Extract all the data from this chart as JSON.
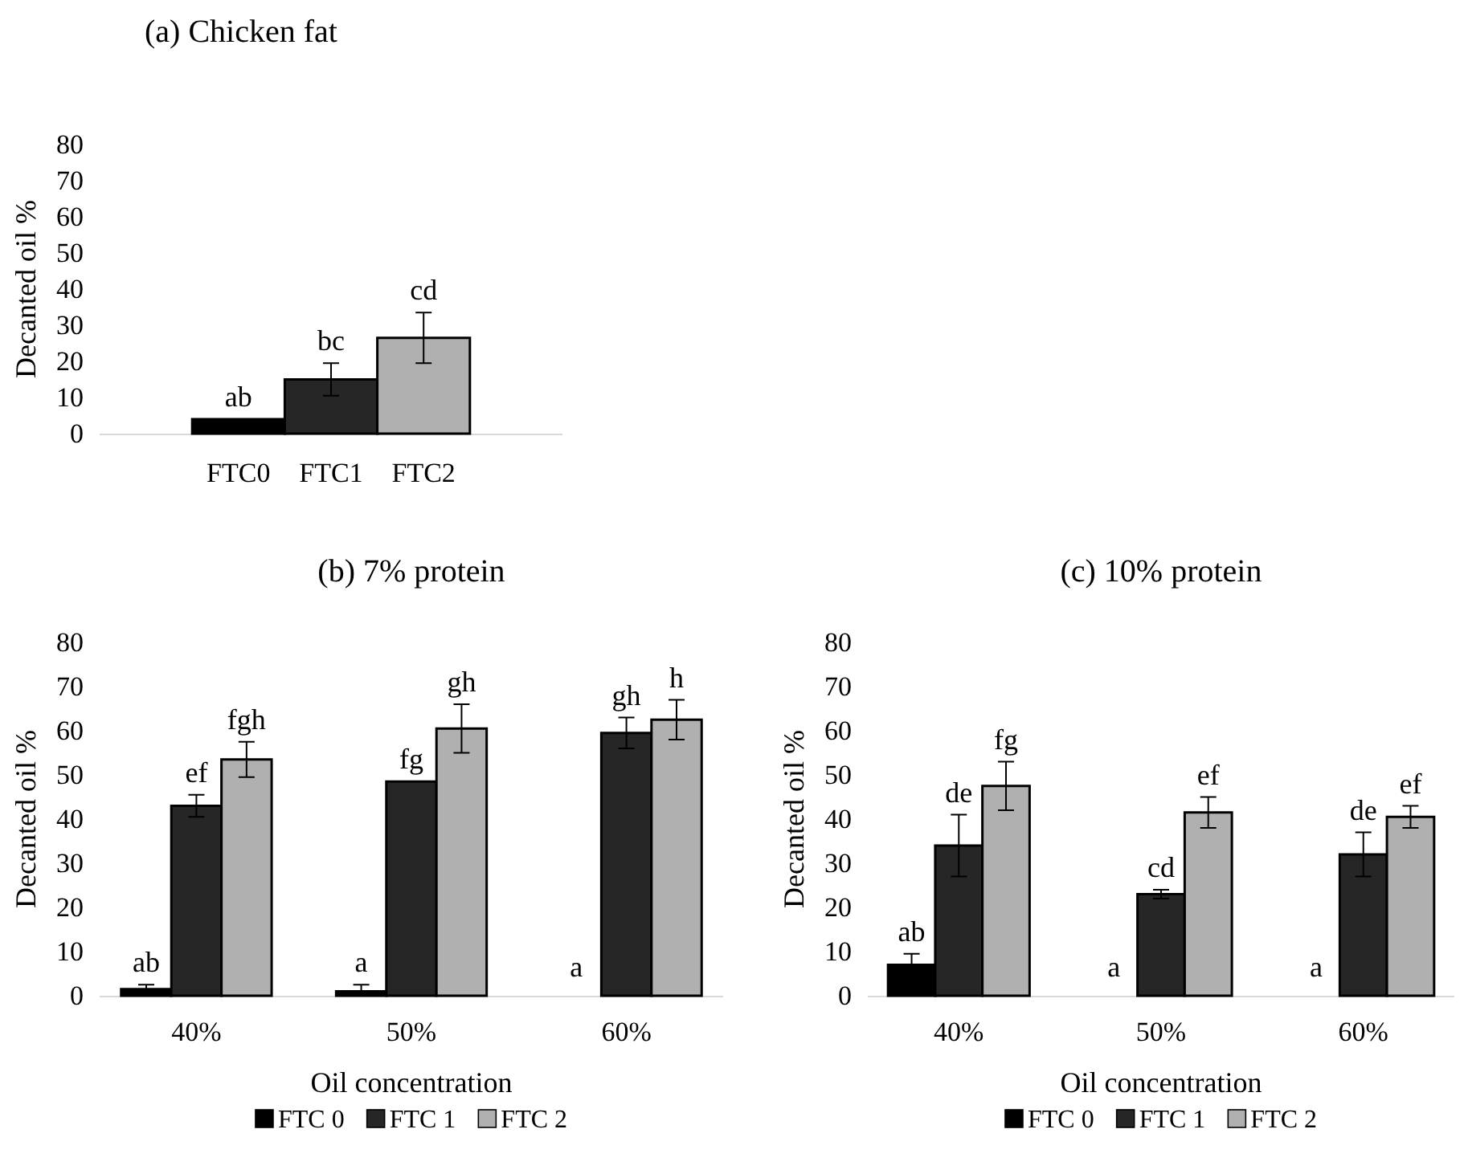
{
  "chart_data": [
    {
      "type": "bar",
      "title": "(a) Chicken fat",
      "ylabel": "Decanted oil %",
      "categories": [
        "FTC0",
        "FTC1",
        "FTC2"
      ],
      "values": [
        4,
        15,
        26.5
      ],
      "colors": [
        "#000000",
        "#262626",
        "#b0b0b0"
      ],
      "errors": [
        null,
        4.5,
        7
      ],
      "ylim": [
        0,
        80
      ],
      "yticks": [
        0,
        10,
        20,
        30,
        40,
        50,
        60,
        70,
        80
      ],
      "grid": false,
      "legend": false,
      "annotations": [
        {
          "text": "ab",
          "x": "FTC0",
          "y": 4
        },
        {
          "text": "bc",
          "x": "FTC1",
          "y": 19.5
        },
        {
          "text": "cd",
          "x": "FTC2",
          "y": 33.5
        }
      ]
    },
    {
      "type": "bar",
      "title": "(b) 7% protein",
      "xlabel": "Oil concentration",
      "ylabel": "Decanted oil %",
      "categories": [
        "40%",
        "50%",
        "60%"
      ],
      "ylim": [
        0,
        80
      ],
      "yticks": [
        0,
        10,
        20,
        30,
        40,
        50,
        60,
        70,
        80
      ],
      "grid": false,
      "legend": "bottom",
      "series": [
        {
          "name": "FTC 0",
          "color": "#000000",
          "values": [
            1.5,
            1,
            0
          ],
          "errors": [
            [
              1.5,
              2.5
            ],
            [
              1,
              2.5
            ],
            null
          ]
        },
        {
          "name": "FTC 1",
          "color": "#262626",
          "values": [
            43,
            48.5,
            59.5
          ],
          "errors": [
            2.5,
            null,
            3.5
          ]
        },
        {
          "name": "FTC 2",
          "color": "#b0b0b0",
          "values": [
            53.5,
            60.5,
            62.5
          ],
          "errors": [
            4,
            5.5,
            4.5
          ]
        }
      ],
      "annotations": [
        "ab",
        "ef",
        "fgh",
        "a",
        "fg",
        "gh",
        "a",
        "gh",
        "h"
      ]
    },
    {
      "type": "bar",
      "title": "(c) 10% protein",
      "xlabel": "Oil concentration",
      "ylabel": "Decanted oil %",
      "categories": [
        "40%",
        "50%",
        "60%"
      ],
      "ylim": [
        0,
        80
      ],
      "yticks": [
        0,
        10,
        20,
        30,
        40,
        50,
        60,
        70,
        80
      ],
      "grid": false,
      "legend": "bottom",
      "series": [
        {
          "name": "FTC 0",
          "color": "#000000",
          "values": [
            7,
            0,
            0
          ],
          "errors": [
            2.5,
            null,
            null
          ]
        },
        {
          "name": "FTC 1",
          "color": "#262626",
          "values": [
            34,
            23,
            32
          ],
          "errors": [
            7,
            1,
            5
          ]
        },
        {
          "name": "FTC 2",
          "color": "#b0b0b0",
          "values": [
            47.5,
            41.5,
            40.5
          ],
          "errors": [
            5.5,
            3.5,
            2.5
          ]
        }
      ],
      "annotations": [
        "ab",
        "de",
        "fg",
        "a",
        "cd",
        "ef",
        "a",
        "de",
        "ef"
      ]
    }
  ]
}
